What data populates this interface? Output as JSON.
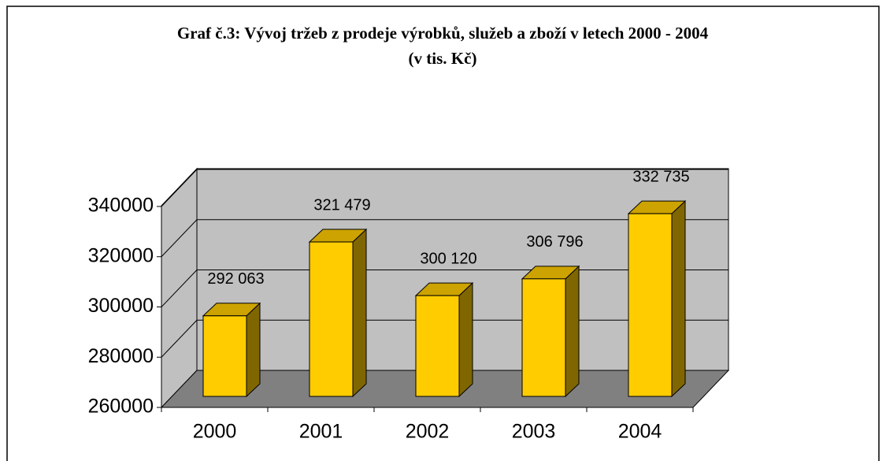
{
  "chart_data": {
    "type": "bar3d",
    "title": "Graf č.3: Vývoj tržeb z prodeje výrobků, služeb a zboží v letech 2000 - 2004",
    "subtitle": "(v tis. Kč)",
    "categories": [
      "2000",
      "2001",
      "2002",
      "2003",
      "2004"
    ],
    "values": [
      292063,
      321479,
      300120,
      306796,
      332735
    ],
    "value_labels": [
      "292 063",
      "321 479",
      "300 120",
      "306 796",
      "332 735"
    ],
    "color": "#ffcc00",
    "ylim": [
      260000,
      340000
    ],
    "yticks": [
      260000,
      280000,
      300000,
      320000,
      340000
    ],
    "grid": true
  }
}
